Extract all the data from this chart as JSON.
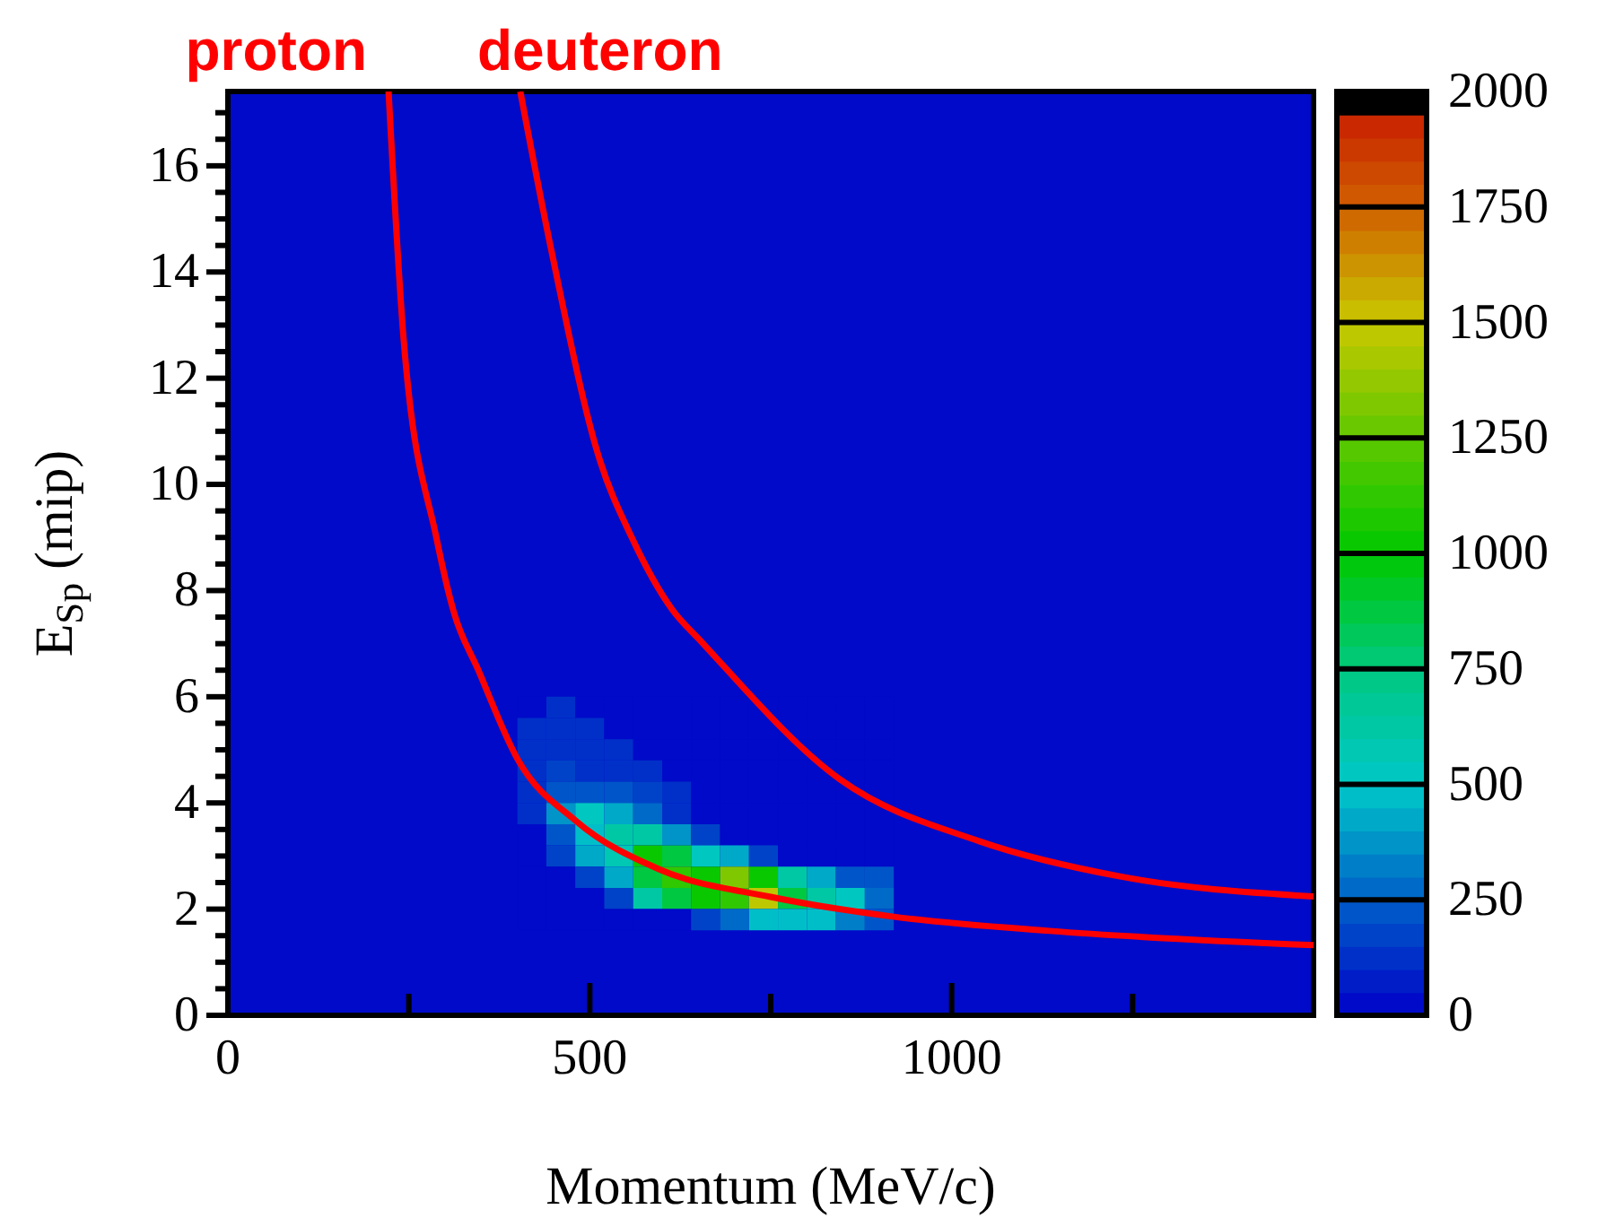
{
  "chart_data": {
    "type": "heatmap",
    "xlabel": "Momentum (MeV/c)",
    "ylabel": "E$_{Sp}$ (mip)",
    "xlim": [
      0,
      1500
    ],
    "ylim": [
      0,
      17.4
    ],
    "xticks": [
      0,
      {
        "value": 250,
        "label": null
      },
      500,
      {
        "value": 750,
        "label": null
      },
      1000,
      {
        "value": 1250,
        "label": null
      }
    ],
    "yticks": [
      0,
      {
        "value": 0.5,
        "label": null
      },
      {
        "value": 1,
        "label": null
      },
      {
        "value": 1.5,
        "label": null
      },
      2,
      {
        "value": 2.5,
        "label": null
      },
      {
        "value": 3,
        "label": null
      },
      {
        "value": 3.5,
        "label": null
      },
      4,
      {
        "value": 4.5,
        "label": null
      },
      {
        "value": 5,
        "label": null
      },
      {
        "value": 5.5,
        "label": null
      },
      6,
      {
        "value": 6.5,
        "label": null
      },
      {
        "value": 7,
        "label": null
      },
      {
        "value": 7.5,
        "label": null
      },
      8,
      {
        "value": 8.5,
        "label": null
      },
      {
        "value": 9,
        "label": null
      },
      {
        "value": 9.5,
        "label": null
      },
      10,
      {
        "value": 10.5,
        "label": null
      },
      {
        "value": 11,
        "label": null
      },
      {
        "value": 11.5,
        "label": null
      },
      12,
      {
        "value": 12.5,
        "label": null
      },
      {
        "value": 13,
        "label": null
      },
      {
        "value": 13.5,
        "label": null
      },
      14,
      {
        "value": 14.5,
        "label": null
      },
      {
        "value": 15,
        "label": null
      },
      {
        "value": 15.5,
        "label": null
      },
      16,
      {
        "value": 16.5,
        "label": null
      },
      {
        "value": 17,
        "label": null
      }
    ],
    "x": [
      420,
      460,
      500,
      540,
      580,
      620,
      660,
      700,
      740,
      780,
      820,
      860,
      900
    ],
    "y": [
      5.8,
      5.4,
      5.0,
      4.6,
      4.2,
      3.8,
      3.4,
      3.0,
      2.6,
      2.2,
      1.8
    ],
    "cells": [
      [
        0,
        100,
        0,
        0,
        0,
        0,
        0,
        0,
        0,
        0,
        0,
        0,
        0
      ],
      [
        100,
        100,
        100,
        0,
        0,
        0,
        0,
        0,
        0,
        0,
        0,
        0,
        0
      ],
      [
        100,
        100,
        100,
        100,
        0,
        0,
        0,
        0,
        0,
        0,
        0,
        0,
        0
      ],
      [
        100,
        150,
        100,
        100,
        100,
        0,
        0,
        0,
        0,
        0,
        0,
        0,
        0
      ],
      [
        100,
        200,
        200,
        200,
        150,
        100,
        0,
        0,
        0,
        0,
        0,
        0,
        0
      ],
      [
        100,
        350,
        500,
        400,
        250,
        100,
        0,
        0,
        0,
        0,
        0,
        0,
        0
      ],
      [
        0,
        200,
        450,
        600,
        600,
        350,
        150,
        0,
        0,
        0,
        0,
        0,
        0
      ],
      [
        0,
        150,
        400,
        550,
        1000,
        850,
        500,
        400,
        150,
        0,
        0,
        0,
        0
      ],
      [
        0,
        0,
        150,
        400,
        850,
        1100,
        1000,
        1300,
        1000,
        600,
        400,
        200,
        200
      ],
      [
        0,
        0,
        0,
        150,
        600,
        850,
        1000,
        1100,
        1450,
        850,
        600,
        500,
        250
      ],
      [
        0,
        0,
        0,
        0,
        0,
        0,
        150,
        250,
        450,
        450,
        450,
        300,
        200
      ]
    ],
    "clim": [
      0,
      2000
    ],
    "cticks": [
      0,
      250,
      500,
      750,
      1000,
      1250,
      1500,
      1750,
      2000
    ],
    "series": [
      {
        "name": "proton",
        "type": "line",
        "color": "#ff0000",
        "x": [
          222,
          243,
          288,
          312,
          346,
          400,
          481,
          596,
          750,
          918,
          1135,
          1500
        ],
        "values": [
          17.4,
          12.7,
          9.0,
          7.6,
          6.5,
          4.83,
          3.66,
          2.75,
          2.23,
          1.86,
          1.59,
          1.32
        ]
      },
      {
        "name": "deuteron",
        "type": "line",
        "color": "#ff0000",
        "x": [
          404,
          447,
          514,
          558,
          614,
          654,
          846,
          1038,
          1231,
          1500
        ],
        "values": [
          17.4,
          14.4,
          10.45,
          9.0,
          7.64,
          7.04,
          4.44,
          3.28,
          2.62,
          2.24
        ]
      }
    ]
  }
}
